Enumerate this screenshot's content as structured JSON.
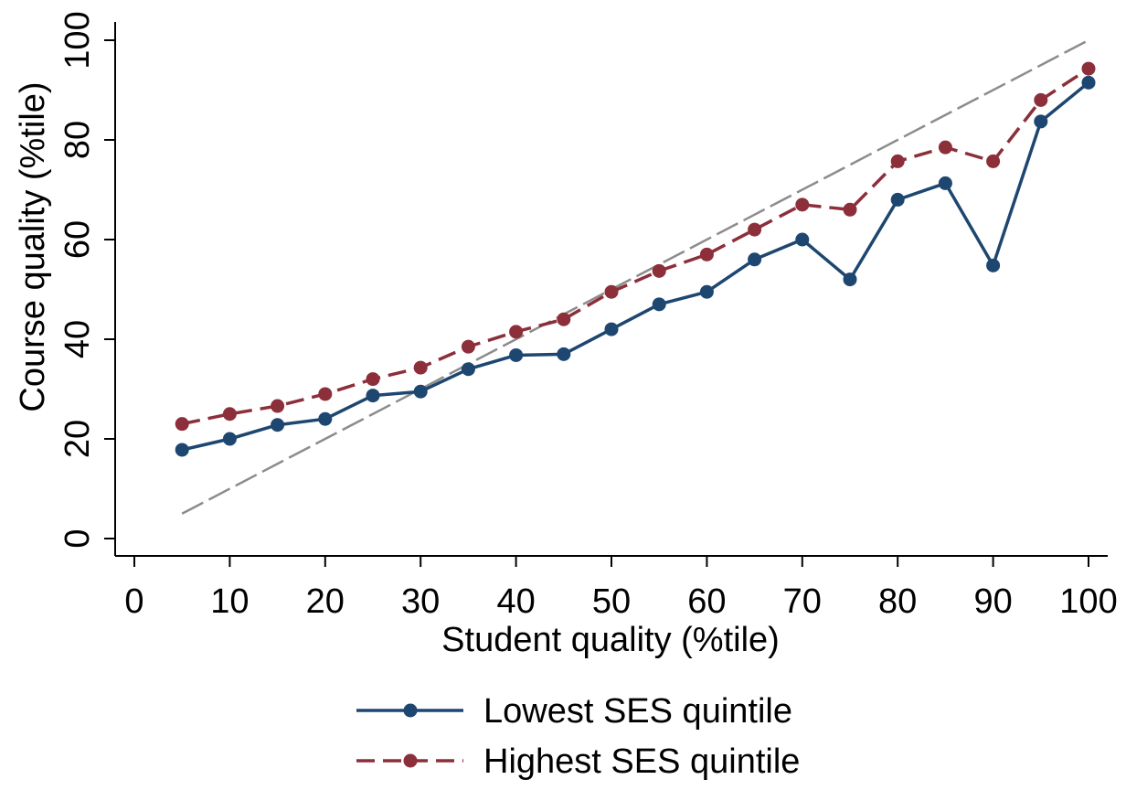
{
  "chart_data": {
    "type": "line",
    "title": "",
    "xlabel": "Student quality (%tile)",
    "ylabel": "Course quality (%tile)",
    "xlim": [
      0,
      100
    ],
    "ylim": [
      0,
      100
    ],
    "xticks": [
      0,
      10,
      20,
      30,
      40,
      50,
      60,
      70,
      80,
      90,
      100
    ],
    "yticks": [
      0,
      20,
      40,
      60,
      80,
      100
    ],
    "grid": false,
    "legend_position": "bottom",
    "x": [
      5,
      10,
      15,
      20,
      25,
      30,
      35,
      40,
      45,
      50,
      55,
      60,
      65,
      70,
      75,
      80,
      85,
      90,
      95,
      100
    ],
    "series": [
      {
        "name": "Lowest SES quintile",
        "color": "#1d4670",
        "line_style": "solid",
        "marker": "circle",
        "values": [
          17.8,
          20,
          22.8,
          24,
          28.7,
          29.5,
          34,
          36.8,
          37,
          42,
          47,
          49.5,
          56,
          60,
          52,
          68,
          71.3,
          54.8,
          83.7,
          91.5
        ]
      },
      {
        "name": "Highest SES quintile",
        "color": "#8c2f3a",
        "line_style": "dashed",
        "marker": "circle",
        "values": [
          23,
          25,
          26.6,
          29,
          32,
          34.3,
          38.5,
          41.5,
          44,
          49.5,
          53.7,
          57,
          62,
          67,
          66,
          75.7,
          78.5,
          75.7,
          88,
          94.3
        ]
      }
    ],
    "reference_line": {
      "x": [
        5,
        100
      ],
      "y": [
        5,
        100
      ],
      "color": "#8c8c8c",
      "line_style": "dashed"
    }
  }
}
